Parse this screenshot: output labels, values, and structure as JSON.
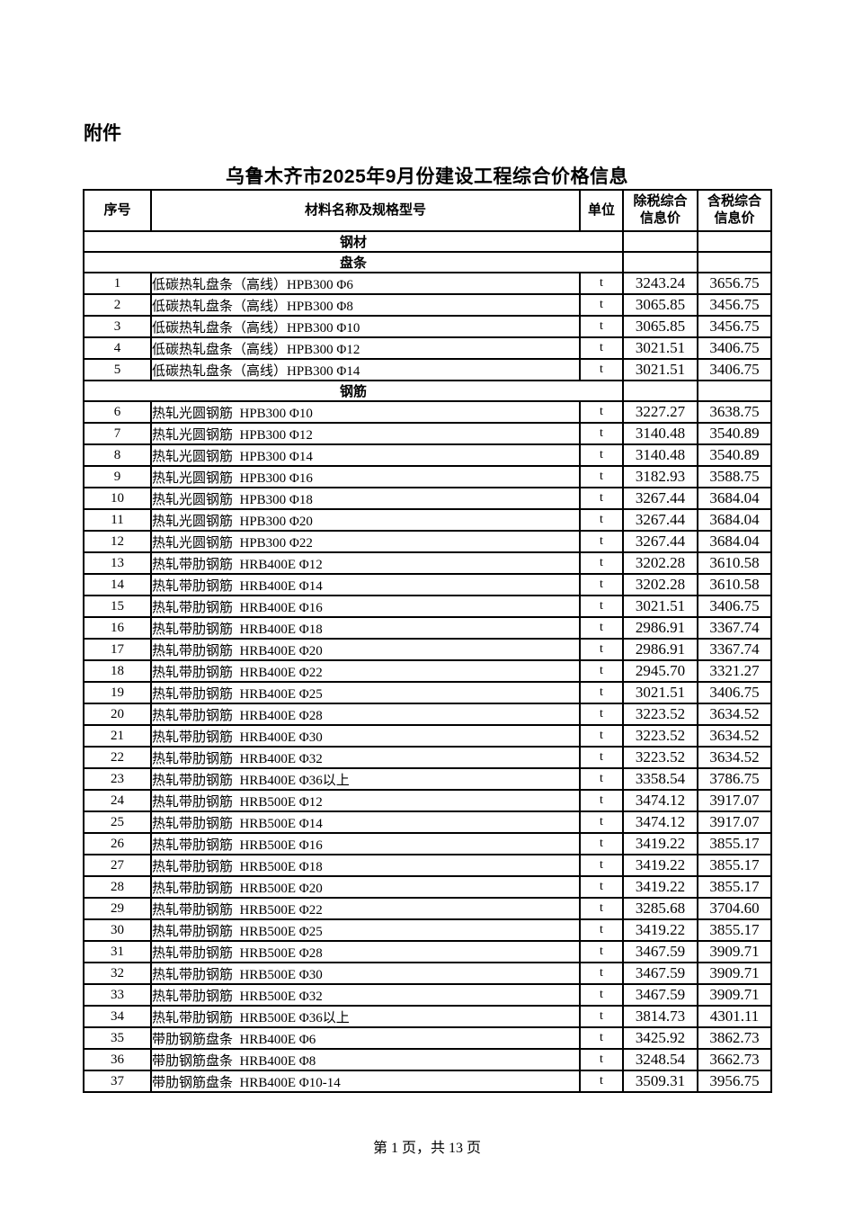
{
  "page": {
    "attachment_label": "附件",
    "title": "乌鲁木齐市2025年9月份建设工程综合价格信息",
    "footer_page_text": "第 1 页，共 13 页"
  },
  "colors": {
    "text": "#000000",
    "border": "#000000",
    "background": "#ffffff"
  },
  "table": {
    "headers": [
      "序号",
      "材料名称及规格型号",
      "单位",
      "除税综合\n信息价",
      "含税综合\n信息价"
    ],
    "rows": [
      {
        "type": "section",
        "label": "钢材"
      },
      {
        "type": "section",
        "label": "盘条"
      },
      {
        "type": "item",
        "no": "1",
        "name": "低碳热轧盘条（高线）HPB300 Φ6",
        "unit": "t",
        "price_ex_tax": "3243.24",
        "price_inc_tax": "3656.75"
      },
      {
        "type": "item",
        "no": "2",
        "name": "低碳热轧盘条（高线）HPB300 Φ8",
        "unit": "t",
        "price_ex_tax": "3065.85",
        "price_inc_tax": "3456.75"
      },
      {
        "type": "item",
        "no": "3",
        "name": "低碳热轧盘条（高线）HPB300 Φ10",
        "unit": "t",
        "price_ex_tax": "3065.85",
        "price_inc_tax": "3456.75"
      },
      {
        "type": "item",
        "no": "4",
        "name": "低碳热轧盘条（高线）HPB300 Φ12",
        "unit": "t",
        "price_ex_tax": "3021.51",
        "price_inc_tax": "3406.75"
      },
      {
        "type": "item",
        "no": "5",
        "name": "低碳热轧盘条（高线）HPB300 Φ14",
        "unit": "t",
        "price_ex_tax": "3021.51",
        "price_inc_tax": "3406.75"
      },
      {
        "type": "section",
        "label": "钢筋"
      },
      {
        "type": "item",
        "no": "6",
        "name": "热轧光圆钢筋  HPB300 Φ10",
        "unit": "t",
        "price_ex_tax": "3227.27",
        "price_inc_tax": "3638.75"
      },
      {
        "type": "item",
        "no": "7",
        "name": "热轧光圆钢筋  HPB300 Φ12",
        "unit": "t",
        "price_ex_tax": "3140.48",
        "price_inc_tax": "3540.89"
      },
      {
        "type": "item",
        "no": "8",
        "name": "热轧光圆钢筋  HPB300 Φ14",
        "unit": "t",
        "price_ex_tax": "3140.48",
        "price_inc_tax": "3540.89"
      },
      {
        "type": "item",
        "no": "9",
        "name": "热轧光圆钢筋  HPB300 Φ16",
        "unit": "t",
        "price_ex_tax": "3182.93",
        "price_inc_tax": "3588.75"
      },
      {
        "type": "item",
        "no": "10",
        "name": "热轧光圆钢筋  HPB300 Φ18",
        "unit": "t",
        "price_ex_tax": "3267.44",
        "price_inc_tax": "3684.04"
      },
      {
        "type": "item",
        "no": "11",
        "name": "热轧光圆钢筋  HPB300 Φ20",
        "unit": "t",
        "price_ex_tax": "3267.44",
        "price_inc_tax": "3684.04"
      },
      {
        "type": "item",
        "no": "12",
        "name": "热轧光圆钢筋  HPB300 Φ22",
        "unit": "t",
        "price_ex_tax": "3267.44",
        "price_inc_tax": "3684.04"
      },
      {
        "type": "item",
        "no": "13",
        "name": "热轧带肋钢筋  HRB400E Φ12",
        "unit": "t",
        "price_ex_tax": "3202.28",
        "price_inc_tax": "3610.58"
      },
      {
        "type": "item",
        "no": "14",
        "name": "热轧带肋钢筋  HRB400E Φ14",
        "unit": "t",
        "price_ex_tax": "3202.28",
        "price_inc_tax": "3610.58"
      },
      {
        "type": "item",
        "no": "15",
        "name": "热轧带肋钢筋  HRB400E Φ16",
        "unit": "t",
        "price_ex_tax": "3021.51",
        "price_inc_tax": "3406.75"
      },
      {
        "type": "item",
        "no": "16",
        "name": "热轧带肋钢筋  HRB400E Φ18",
        "unit": "t",
        "price_ex_tax": "2986.91",
        "price_inc_tax": "3367.74"
      },
      {
        "type": "item",
        "no": "17",
        "name": "热轧带肋钢筋  HRB400E Φ20",
        "unit": "t",
        "price_ex_tax": "2986.91",
        "price_inc_tax": "3367.74"
      },
      {
        "type": "item",
        "no": "18",
        "name": "热轧带肋钢筋  HRB400E Φ22",
        "unit": "t",
        "price_ex_tax": "2945.70",
        "price_inc_tax": "3321.27"
      },
      {
        "type": "item",
        "no": "19",
        "name": "热轧带肋钢筋  HRB400E Φ25",
        "unit": "t",
        "price_ex_tax": "3021.51",
        "price_inc_tax": "3406.75"
      },
      {
        "type": "item",
        "no": "20",
        "name": "热轧带肋钢筋  HRB400E Φ28",
        "unit": "t",
        "price_ex_tax": "3223.52",
        "price_inc_tax": "3634.52"
      },
      {
        "type": "item",
        "no": "21",
        "name": "热轧带肋钢筋  HRB400E Φ30",
        "unit": "t",
        "price_ex_tax": "3223.52",
        "price_inc_tax": "3634.52"
      },
      {
        "type": "item",
        "no": "22",
        "name": "热轧带肋钢筋  HRB400E Φ32",
        "unit": "t",
        "price_ex_tax": "3223.52",
        "price_inc_tax": "3634.52"
      },
      {
        "type": "item",
        "no": "23",
        "name": "热轧带肋钢筋  HRB400E Φ36以上",
        "unit": "t",
        "price_ex_tax": "3358.54",
        "price_inc_tax": "3786.75"
      },
      {
        "type": "item",
        "no": "24",
        "name": "热轧带肋钢筋  HRB500E Φ12",
        "unit": "t",
        "price_ex_tax": "3474.12",
        "price_inc_tax": "3917.07"
      },
      {
        "type": "item",
        "no": "25",
        "name": "热轧带肋钢筋  HRB500E Φ14",
        "unit": "t",
        "price_ex_tax": "3474.12",
        "price_inc_tax": "3917.07"
      },
      {
        "type": "item",
        "no": "26",
        "name": "热轧带肋钢筋  HRB500E Φ16",
        "unit": "t",
        "price_ex_tax": "3419.22",
        "price_inc_tax": "3855.17"
      },
      {
        "type": "item",
        "no": "27",
        "name": "热轧带肋钢筋  HRB500E Φ18",
        "unit": "t",
        "price_ex_tax": "3419.22",
        "price_inc_tax": "3855.17"
      },
      {
        "type": "item",
        "no": "28",
        "name": "热轧带肋钢筋  HRB500E Φ20",
        "unit": "t",
        "price_ex_tax": "3419.22",
        "price_inc_tax": "3855.17"
      },
      {
        "type": "item",
        "no": "29",
        "name": "热轧带肋钢筋  HRB500E Φ22",
        "unit": "t",
        "price_ex_tax": "3285.68",
        "price_inc_tax": "3704.60"
      },
      {
        "type": "item",
        "no": "30",
        "name": "热轧带肋钢筋  HRB500E Φ25",
        "unit": "t",
        "price_ex_tax": "3419.22",
        "price_inc_tax": "3855.17"
      },
      {
        "type": "item",
        "no": "31",
        "name": "热轧带肋钢筋  HRB500E Φ28",
        "unit": "t",
        "price_ex_tax": "3467.59",
        "price_inc_tax": "3909.71"
      },
      {
        "type": "item",
        "no": "32",
        "name": "热轧带肋钢筋  HRB500E Φ30",
        "unit": "t",
        "price_ex_tax": "3467.59",
        "price_inc_tax": "3909.71"
      },
      {
        "type": "item",
        "no": "33",
        "name": "热轧带肋钢筋  HRB500E Φ32",
        "unit": "t",
        "price_ex_tax": "3467.59",
        "price_inc_tax": "3909.71"
      },
      {
        "type": "item",
        "no": "34",
        "name": "热轧带肋钢筋  HRB500E Φ36以上",
        "unit": "t",
        "price_ex_tax": "3814.73",
        "price_inc_tax": "4301.11"
      },
      {
        "type": "item",
        "no": "35",
        "name": "带肋钢筋盘条  HRB400E Φ6",
        "unit": "t",
        "price_ex_tax": "3425.92",
        "price_inc_tax": "3862.73"
      },
      {
        "type": "item",
        "no": "36",
        "name": "带肋钢筋盘条  HRB400E Φ8",
        "unit": "t",
        "price_ex_tax": "3248.54",
        "price_inc_tax": "3662.73"
      },
      {
        "type": "item",
        "no": "37",
        "name": "带肋钢筋盘条  HRB400E Φ10-14",
        "unit": "t",
        "price_ex_tax": "3509.31",
        "price_inc_tax": "3956.75"
      }
    ]
  }
}
